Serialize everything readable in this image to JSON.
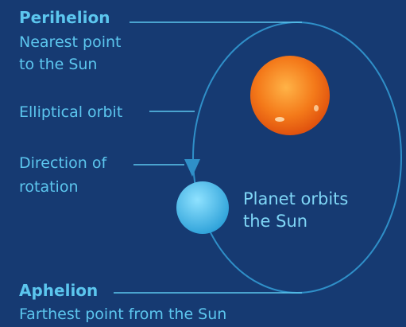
{
  "perihelion": {
    "title": "Perihelion",
    "description": [
      "Nearest point",
      "to the Sun"
    ]
  },
  "orbit_label": "Elliptical orbit",
  "direction_label": [
    "Direction of",
    "rotation"
  ],
  "planet_label": [
    "Planet orbits",
    "the Sun"
  ],
  "aphelion": {
    "title": "Aphelion",
    "description": [
      "Farthest point from the Sun"
    ]
  }
}
